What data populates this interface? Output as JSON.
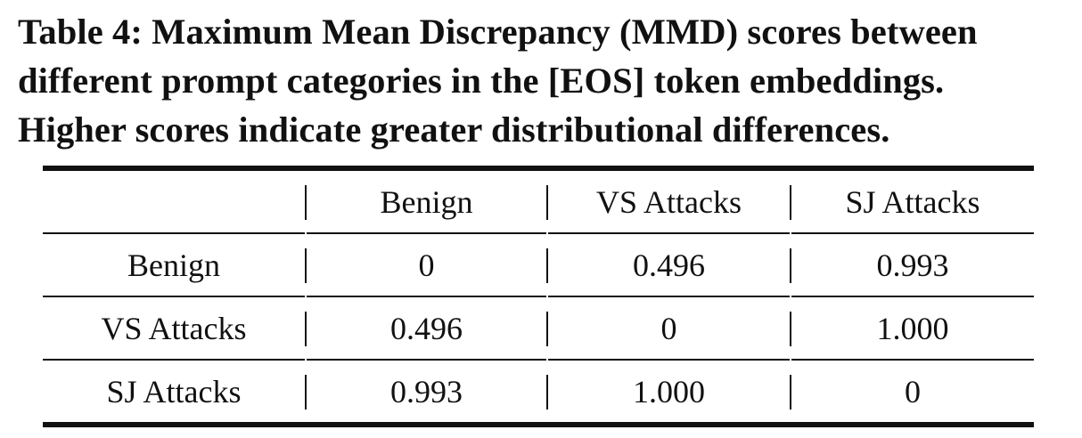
{
  "caption": {
    "line1": "Table 4: Maximum Mean Discrepancy (MMD) scores between",
    "line2": "different prompt categories in the [EOS] token embeddings.",
    "line3": "Higher scores indicate greater distributional differences."
  },
  "table": {
    "headers": [
      "",
      "Benign",
      "VS Attacks",
      "SJ Attacks"
    ],
    "rows": [
      {
        "label": "Benign",
        "values": [
          "0",
          "0.496",
          "0.993"
        ]
      },
      {
        "label": "VS Attacks",
        "values": [
          "0.496",
          "0",
          "1.000"
        ]
      },
      {
        "label": "SJ Attacks",
        "values": [
          "0.993",
          "1.000",
          "0"
        ]
      }
    ]
  }
}
